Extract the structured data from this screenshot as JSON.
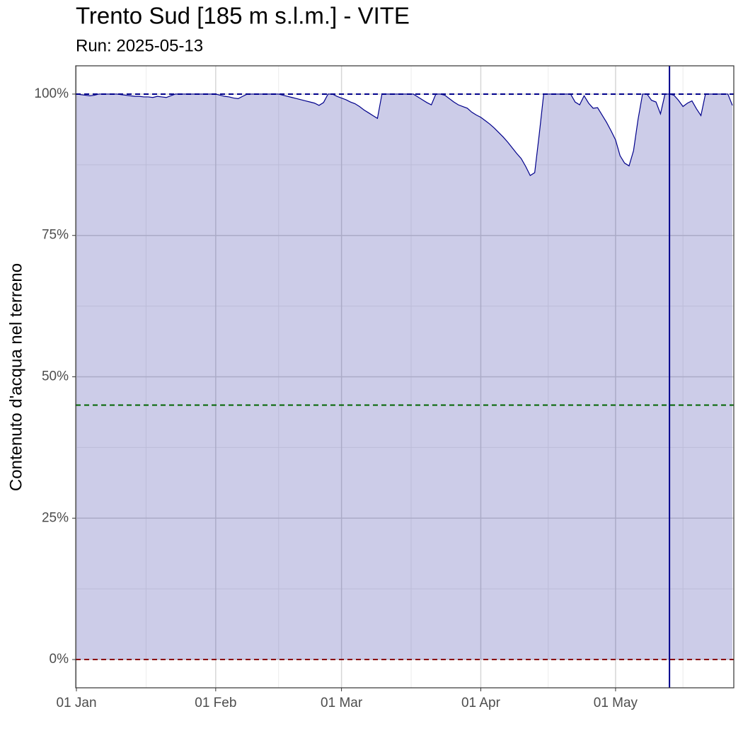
{
  "chart_data": {
    "type": "area",
    "title": "Trento Sud [185 m s.l.m.] - VITE",
    "subtitle": "Run: 2025-05-13",
    "ylabel": "Contenuto d'acqua nel terreno",
    "color": "#00008b",
    "fill": "#00008b",
    "x": [
      "01-01",
      "01-02",
      "01-03",
      "01-04",
      "01-05",
      "01-06",
      "01-07",
      "01-08",
      "01-09",
      "01-10",
      "01-11",
      "01-12",
      "01-13",
      "01-14",
      "01-15",
      "01-16",
      "01-17",
      "01-18",
      "01-19",
      "01-20",
      "01-21",
      "01-22",
      "01-23",
      "01-24",
      "01-25",
      "01-26",
      "01-27",
      "01-28",
      "01-29",
      "01-30",
      "01-31",
      "02-01",
      "02-02",
      "02-03",
      "02-04",
      "02-05",
      "02-06",
      "02-07",
      "02-08",
      "02-09",
      "02-10",
      "02-11",
      "02-12",
      "02-13",
      "02-14",
      "02-15",
      "02-16",
      "02-17",
      "02-18",
      "02-19",
      "02-20",
      "02-21",
      "02-22",
      "02-23",
      "02-24",
      "02-25",
      "02-26",
      "02-27",
      "02-28",
      "03-01",
      "03-02",
      "03-03",
      "03-04",
      "03-05",
      "03-06",
      "03-07",
      "03-08",
      "03-09",
      "03-10",
      "03-11",
      "03-12",
      "03-13",
      "03-14",
      "03-15",
      "03-16",
      "03-17",
      "03-18",
      "03-19",
      "03-20",
      "03-21",
      "03-22",
      "03-23",
      "03-24",
      "03-25",
      "03-26",
      "03-27",
      "03-28",
      "03-29",
      "03-30",
      "03-31",
      "04-01",
      "04-02",
      "04-03",
      "04-04",
      "04-05",
      "04-06",
      "04-07",
      "04-08",
      "04-09",
      "04-10",
      "04-11",
      "04-12",
      "04-13",
      "04-14",
      "04-15",
      "04-16",
      "04-17",
      "04-18",
      "04-19",
      "04-20",
      "04-21",
      "04-22",
      "04-23",
      "04-24",
      "04-25",
      "04-26",
      "04-27",
      "04-28",
      "04-29",
      "04-30",
      "05-01",
      "05-02",
      "05-03",
      "05-04",
      "05-05",
      "05-06",
      "05-07",
      "05-08",
      "05-09",
      "05-10",
      "05-11",
      "05-12",
      "05-13",
      "05-14",
      "05-15",
      "05-16",
      "05-17",
      "05-18",
      "05-19",
      "05-20",
      "05-21",
      "05-22",
      "05-23",
      "05-24",
      "05-25",
      "05-26",
      "05-27"
    ],
    "values": [
      100,
      99.9,
      99.8,
      99.7,
      99.8,
      100,
      100,
      100,
      100,
      100,
      99.9,
      99.8,
      99.7,
      99.6,
      99.6,
      99.5,
      99.5,
      99.4,
      99.6,
      99.5,
      99.4,
      99.7,
      100,
      100,
      100,
      100,
      100,
      100,
      100,
      100,
      100,
      100,
      99.8,
      99.6,
      99.5,
      99.3,
      99.2,
      99.6,
      100,
      100,
      100,
      100,
      100,
      100,
      100,
      100,
      99.8,
      99.6,
      99.4,
      99.2,
      99.0,
      98.8,
      98.6,
      98.4,
      98.0,
      98.5,
      100,
      100,
      99.6,
      99.3,
      99.0,
      98.6,
      98.3,
      97.8,
      97.2,
      96.7,
      96.2,
      95.7,
      100,
      100,
      100,
      100,
      100,
      100,
      100,
      100,
      99.5,
      99.0,
      98.5,
      98.1,
      100,
      100,
      99.8,
      99.2,
      98.6,
      98.1,
      97.8,
      97.5,
      96.8,
      96.3,
      95.9,
      95.3,
      94.7,
      94.0,
      93.2,
      92.4,
      91.5,
      90.5,
      89.5,
      88.6,
      87.2,
      85.6,
      86.1,
      92.8,
      100,
      100,
      100,
      100,
      100,
      100,
      100,
      98.6,
      98.1,
      99.7,
      98.4,
      97.5,
      97.6,
      96.3,
      95.0,
      93.5,
      91.9,
      89.1,
      87.8,
      87.3,
      90.0,
      95.5,
      100,
      100,
      98.9,
      98.6,
      96.5,
      100,
      100,
      99.8,
      98.9,
      97.8,
      98.4,
      98.8,
      97.4,
      96.2,
      100,
      100,
      100,
      100,
      100,
      100,
      98.0
    ],
    "xlim": [
      "01-01",
      "05-27"
    ],
    "ylim": [
      -5,
      105
    ],
    "xticks": [
      {
        "value": "01-01",
        "label": "01 Jan"
      },
      {
        "value": "02-01",
        "label": "01 Feb"
      },
      {
        "value": "03-01",
        "label": "01 Mar"
      },
      {
        "value": "04-01",
        "label": "01 Apr"
      },
      {
        "value": "05-01",
        "label": "01 May"
      }
    ],
    "yticks": [
      {
        "value": 0,
        "label": "0%"
      },
      {
        "value": 25,
        "label": "25%"
      },
      {
        "value": 50,
        "label": "50%"
      },
      {
        "value": 75,
        "label": "75%"
      },
      {
        "value": 100,
        "label": "100%"
      }
    ],
    "grid": true,
    "hlines": [
      {
        "value": 100,
        "color": "#00008b"
      },
      {
        "value": 45,
        "color": "#006400"
      },
      {
        "value": 0,
        "color": "#8b0000"
      }
    ],
    "vline": {
      "x": "05-13",
      "color": "#00008b"
    }
  }
}
